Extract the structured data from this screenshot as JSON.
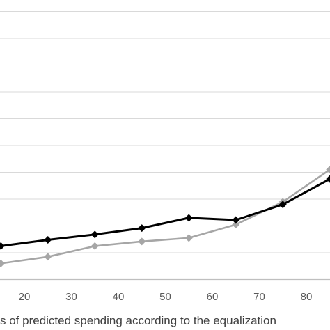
{
  "chart_data": {
    "type": "line",
    "title": "",
    "xlabel": "s of predicted spending according to the equalization",
    "ylabel": "",
    "x_ticks": [
      20,
      30,
      40,
      50,
      60,
      70,
      80
    ],
    "x_range": [
      15,
      85
    ],
    "y_range": [
      0,
      10
    ],
    "grid": true,
    "legend": "none",
    "series": [
      {
        "color": "#000000",
        "marker": "diamond",
        "x": [
          15,
          25,
          35,
          45,
          55,
          65,
          75,
          85
        ],
        "y": [
          0.25,
          0.48,
          0.68,
          0.92,
          1.3,
          1.22,
          1.8,
          2.75
        ]
      },
      {
        "color": "#a6a6a6",
        "marker": "diamond",
        "x": [
          15,
          25,
          35,
          45,
          55,
          65,
          75,
          85
        ],
        "y": [
          -0.4,
          -0.15,
          0.25,
          0.42,
          0.55,
          1.05,
          1.9,
          3.1
        ]
      }
    ]
  }
}
